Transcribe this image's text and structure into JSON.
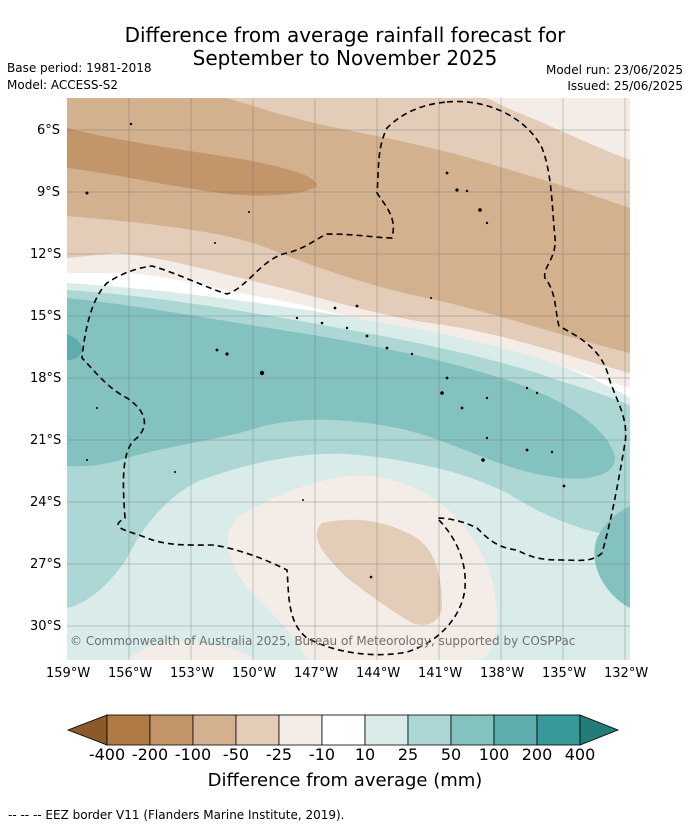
{
  "header": {
    "title_line1": "Difference from average rainfall forecast for",
    "title_line2": "September to November 2025",
    "base_period": "Base period: 1981-2018",
    "model": "Model: ACCESS-S2",
    "model_run": "Model run: 23/06/2025",
    "issued": "Issued: 25/06/2025"
  },
  "map": {
    "lat_labels": [
      "6°S",
      "9°S",
      "12°S",
      "15°S",
      "18°S",
      "21°S",
      "24°S",
      "27°S",
      "30°S"
    ],
    "lon_labels": [
      "159°W",
      "156°W",
      "153°W",
      "150°W",
      "147°W",
      "144°W",
      "141°W",
      "138°W",
      "135°W",
      "132°W"
    ],
    "copyright": "© Commonwealth of Australia 2025, Bureau of Meteorology, supported by COSPPac"
  },
  "legend": {
    "colors": [
      "#8b5a2b",
      "#b07a45",
      "#c3956a",
      "#d3b18f",
      "#e3cdb8",
      "#f4ece6",
      "#ffffff",
      "#d9ecea",
      "#add7d5",
      "#84c2c0",
      "#5cadab",
      "#37999a",
      "#227d78"
    ],
    "tick_labels": [
      "-400",
      "-200",
      "-100",
      "-50",
      "-25",
      "-10",
      "10",
      "25",
      "50",
      "100",
      "200",
      "400"
    ],
    "title": "Difference from average (mm)"
  },
  "footer": {
    "eez_note": "--  --  -- EEZ border V11 (Flanders Marine Institute, 2019)."
  }
}
